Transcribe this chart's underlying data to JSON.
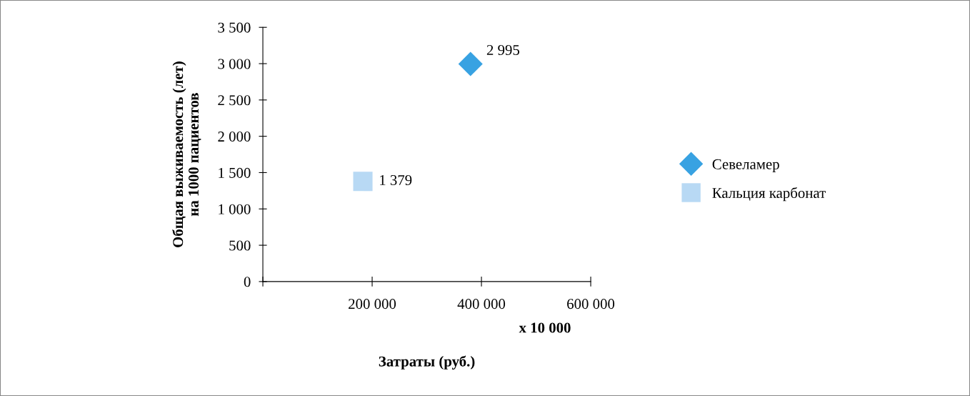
{
  "chart_data": {
    "type": "scatter",
    "xlabel": "Затраты (руб.)",
    "ylabel": "Общая выживаемость (лет)\nна 1000 пациентов",
    "annotations": [
      "x 10 000"
    ],
    "series": [
      {
        "name": "Севеламер",
        "color": "#38a2e2",
        "marker": "diamond",
        "x": [
          380000
        ],
        "values": [
          2995
        ],
        "value_labels": [
          "2 995"
        ]
      },
      {
        "name": "Кальция карбонат",
        "color": "#b8d9f4",
        "marker": "square",
        "x": [
          183000
        ],
        "values": [
          1379
        ],
        "value_labels": [
          "1 379"
        ]
      }
    ],
    "xlim": [
      0,
      600000
    ],
    "xticks": [
      {
        "value": 0,
        "label": null
      },
      {
        "value": 200000,
        "label": "200 000"
      },
      {
        "value": 400000,
        "label": "400 000"
      },
      {
        "value": 600000,
        "label": "600 000"
      }
    ],
    "ylim": [
      0,
      3500
    ],
    "yticks": [
      0,
      {
        "value": 500,
        "label": "500"
      },
      {
        "value": 1000,
        "label": "1 000"
      },
      {
        "value": 1500,
        "label": "1 500"
      },
      {
        "value": 2000,
        "label": "2 000"
      },
      {
        "value": 2500,
        "label": "2 500"
      },
      {
        "value": 3000,
        "label": "3 000"
      },
      {
        "value": 3500,
        "label": "3 500"
      }
    ],
    "grid": false,
    "legend": "right"
  }
}
